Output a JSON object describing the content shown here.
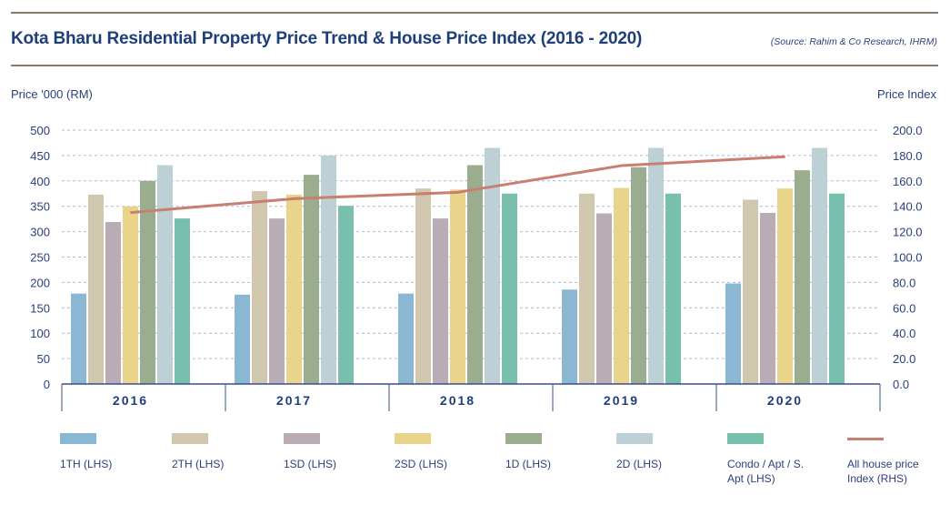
{
  "header": {
    "title": "Kota Bharu Residential Property Price Trend & House Price Index (2016 - 2020)",
    "source": "(Source: Rahim & Co Research, IHRM)"
  },
  "chart_data": {
    "type": "bar",
    "categories": [
      "2016",
      "2017",
      "2018",
      "2019",
      "2020"
    ],
    "ylabel": "Price '000 (RM)",
    "ylabel_right": "Price Index",
    "ylim": [
      0,
      500
    ],
    "ylim_right": [
      0,
      200
    ],
    "yticks": [
      "0",
      "50",
      "100",
      "150",
      "200",
      "250",
      "300",
      "350",
      "400",
      "450",
      "500"
    ],
    "yticks_right": [
      "0.0",
      "20.0",
      "40.0",
      "60.0",
      "80.0",
      "100.0",
      "120.0",
      "140.0",
      "160.0",
      "180.0",
      "200.0"
    ],
    "grid": true,
    "legend_position": "bottom",
    "series": [
      {
        "name": "1TH (LHS)",
        "color": "#8ab8d2",
        "values": [
          178,
          176,
          178,
          186,
          198
        ]
      },
      {
        "name": "2TH (LHS)",
        "color": "#d1c6ae",
        "values": [
          373,
          380,
          385,
          375,
          363
        ]
      },
      {
        "name": "1SD (LHS)",
        "color": "#b9acb4",
        "values": [
          319,
          326,
          326,
          336,
          337
        ]
      },
      {
        "name": "2SD (LHS)",
        "color": "#e8d48a",
        "values": [
          350,
          373,
          383,
          386,
          385
        ]
      },
      {
        "name": "1D (LHS)",
        "color": "#9aae8f",
        "values": [
          400,
          412,
          431,
          427,
          421
        ]
      },
      {
        "name": "2D (LHS)",
        "color": "#bcd0d5",
        "values": [
          431,
          450,
          465,
          465,
          465
        ]
      },
      {
        "name": "Condo / Apt / S. Apt (LHS)",
        "color": "#79bfae",
        "values": [
          326,
          351,
          375,
          375,
          375
        ]
      }
    ],
    "line_series": {
      "name": "All house price Index (RHS)",
      "color": "#c97e72",
      "axis": "right",
      "values": [
        135,
        146,
        151,
        172,
        179
      ]
    }
  },
  "legend": [
    {
      "label": "1TH (LHS)",
      "color": "#8ab8d2",
      "kind": "box"
    },
    {
      "label": "2TH (LHS)",
      "color": "#d1c6ae",
      "kind": "box"
    },
    {
      "label": "1SD (LHS)",
      "color": "#b9acb4",
      "kind": "box"
    },
    {
      "label": "2SD (LHS)",
      "color": "#e8d48a",
      "kind": "box"
    },
    {
      "label": "1D (LHS)",
      "color": "#9aae8f",
      "kind": "box"
    },
    {
      "label": "2D (LHS)",
      "color": "#bcd0d5",
      "kind": "box"
    },
    {
      "label": "Condo / Apt / S. Apt (LHS)",
      "color": "#79bfae",
      "kind": "box"
    },
    {
      "label": "All house price Index (RHS)",
      "color": "#c97e72",
      "kind": "line"
    }
  ]
}
